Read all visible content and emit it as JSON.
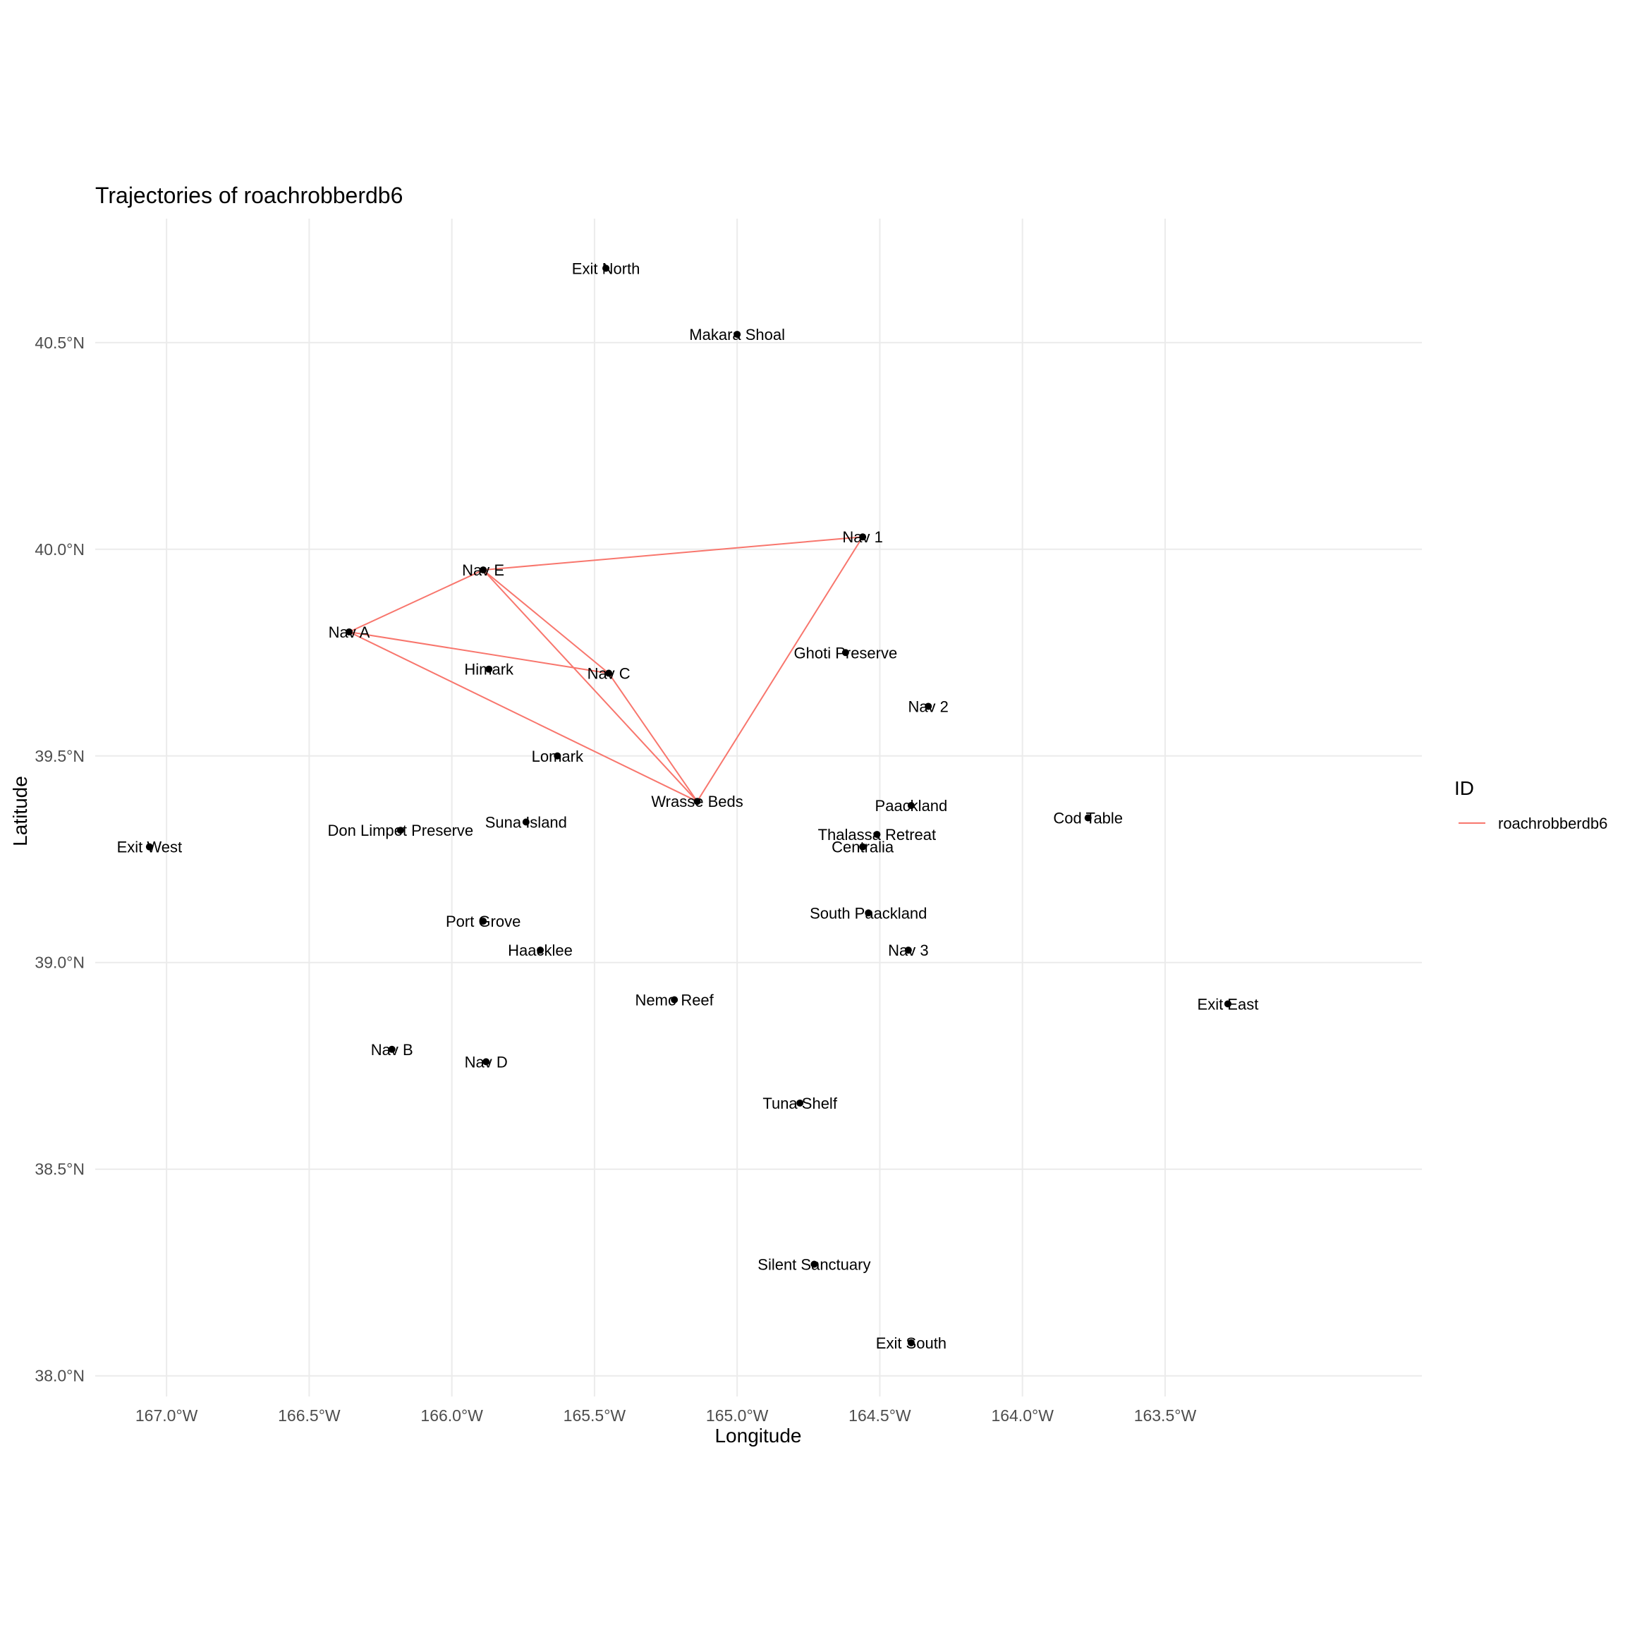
{
  "chart_data": {
    "type": "line",
    "title": "Trajectories of roachrobberdb6",
    "xlabel": "Longitude",
    "ylabel": "Latitude",
    "xlim": [
      -167.25,
      -162.6
    ],
    "ylim": [
      37.95,
      40.8
    ],
    "x_ticks": [
      {
        "value": -167.0,
        "label": "167.0°W"
      },
      {
        "value": -166.5,
        "label": "166.5°W"
      },
      {
        "value": -166.0,
        "label": "166.0°W"
      },
      {
        "value": -165.5,
        "label": "165.5°W"
      },
      {
        "value": -165.0,
        "label": "165.0°W"
      },
      {
        "value": -164.5,
        "label": "164.5°W"
      },
      {
        "value": -164.0,
        "label": "164.0°W"
      },
      {
        "value": -163.5,
        "label": "163.5°W"
      }
    ],
    "y_ticks": [
      {
        "value": 38.0,
        "label": "38.0°N"
      },
      {
        "value": 38.5,
        "label": "38.5°N"
      },
      {
        "value": 39.0,
        "label": "39.0°N"
      },
      {
        "value": 39.5,
        "label": "39.5°N"
      },
      {
        "value": 40.0,
        "label": "40.0°N"
      },
      {
        "value": 40.5,
        "label": "40.5°N"
      }
    ],
    "grid": true,
    "legend": {
      "title": "ID",
      "position": "right",
      "entries": [
        {
          "label": "roachrobberdb6",
          "color": "#F8766D"
        }
      ]
    },
    "places": [
      {
        "name": "Exit North",
        "lon": -165.46,
        "lat": 40.68
      },
      {
        "name": "Makara Shoal",
        "lon": -165.0,
        "lat": 40.52
      },
      {
        "name": "Nav 1",
        "lon": -164.56,
        "lat": 40.03
      },
      {
        "name": "Nav E",
        "lon": -165.89,
        "lat": 39.95
      },
      {
        "name": "Nav A",
        "lon": -166.36,
        "lat": 39.8
      },
      {
        "name": "Ghoti Preserve",
        "lon": -164.62,
        "lat": 39.75
      },
      {
        "name": "Himark",
        "lon": -165.87,
        "lat": 39.71
      },
      {
        "name": "Nav C",
        "lon": -165.45,
        "lat": 39.7
      },
      {
        "name": "Nav 2",
        "lon": -164.33,
        "lat": 39.62
      },
      {
        "name": "Lomark",
        "lon": -165.63,
        "lat": 39.5
      },
      {
        "name": "Wrasse Beds",
        "lon": -165.14,
        "lat": 39.39
      },
      {
        "name": "Paackland",
        "lon": -164.39,
        "lat": 39.38
      },
      {
        "name": "Cod Table",
        "lon": -163.77,
        "lat": 39.35
      },
      {
        "name": "Suna Island",
        "lon": -165.74,
        "lat": 39.34
      },
      {
        "name": "Don Limpet Preserve",
        "lon": -166.18,
        "lat": 39.32
      },
      {
        "name": "Thalassa Retreat",
        "lon": -164.51,
        "lat": 39.31
      },
      {
        "name": "Exit West",
        "lon": -167.06,
        "lat": 39.28
      },
      {
        "name": "Centralia",
        "lon": -164.56,
        "lat": 39.28
      },
      {
        "name": "South Paackland",
        "lon": -164.54,
        "lat": 39.12
      },
      {
        "name": "Port Grove",
        "lon": -165.89,
        "lat": 39.1
      },
      {
        "name": "Haacklee",
        "lon": -165.69,
        "lat": 39.03
      },
      {
        "name": "Nav 3",
        "lon": -164.4,
        "lat": 39.03
      },
      {
        "name": "Nemo Reef",
        "lon": -165.22,
        "lat": 38.91
      },
      {
        "name": "Exit East",
        "lon": -163.28,
        "lat": 38.9
      },
      {
        "name": "Nav B",
        "lon": -166.21,
        "lat": 38.79
      },
      {
        "name": "Nav D",
        "lon": -165.88,
        "lat": 38.76
      },
      {
        "name": "Tuna Shelf",
        "lon": -164.78,
        "lat": 38.66
      },
      {
        "name": "Silent Sanctuary",
        "lon": -164.73,
        "lat": 38.27
      },
      {
        "name": "Exit South",
        "lon": -164.39,
        "lat": 38.08
      }
    ],
    "series": [
      {
        "name": "roachrobberdb6",
        "color": "#F8766D",
        "path": [
          {
            "lon": -165.45,
            "lat": 39.7
          },
          {
            "lon": -165.89,
            "lat": 39.95
          },
          {
            "lon": -164.56,
            "lat": 40.03
          },
          {
            "lon": -165.14,
            "lat": 39.39
          },
          {
            "lon": -165.89,
            "lat": 39.95
          },
          {
            "lon": -166.36,
            "lat": 39.8
          },
          {
            "lon": -165.45,
            "lat": 39.7
          },
          {
            "lon": -165.14,
            "lat": 39.39
          },
          {
            "lon": -166.36,
            "lat": 39.8
          }
        ]
      }
    ]
  }
}
